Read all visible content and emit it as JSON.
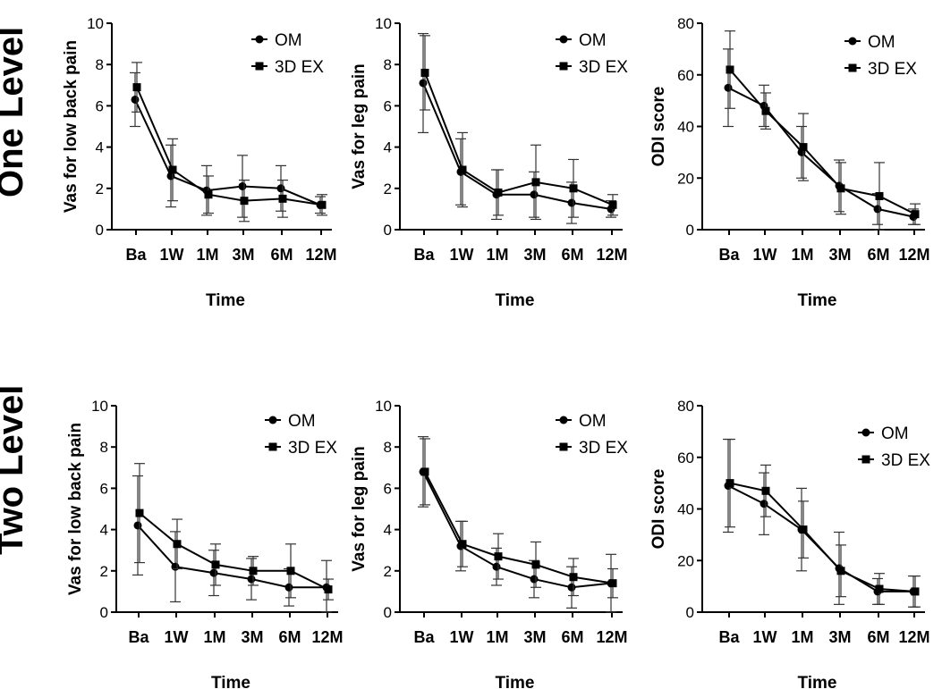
{
  "rows": [
    {
      "label": "One Level"
    },
    {
      "label": "Two Level"
    }
  ],
  "legend": {
    "series_1": "OM",
    "series_2": "3D EX"
  },
  "chart_data": [
    {
      "type": "line",
      "row": "One Level",
      "xlabel": "Time",
      "ylabel": "Vas for low back pain",
      "categories": [
        "Ba",
        "1W",
        "1M",
        "3M",
        "6M",
        "12M"
      ],
      "ylim": [
        0,
        10
      ],
      "yticks": [
        0,
        2,
        4,
        6,
        8,
        10
      ],
      "series": [
        {
          "name": "OM",
          "marker": "circle",
          "values": [
            6.3,
            2.6,
            1.9,
            2.1,
            2.0,
            1.2
          ],
          "err": [
            1.3,
            1.5,
            1.2,
            1.5,
            1.1,
            0.4
          ]
        },
        {
          "name": "3D EX",
          "marker": "square",
          "values": [
            6.9,
            2.9,
            1.7,
            1.4,
            1.5,
            1.2
          ],
          "err": [
            1.2,
            1.5,
            0.9,
            1.0,
            0.9,
            0.5
          ]
        }
      ]
    },
    {
      "type": "line",
      "row": "One Level",
      "xlabel": "Time",
      "ylabel": "Vas for leg pain",
      "categories": [
        "Ba",
        "1W",
        "1M",
        "3M",
        "6M",
        "12M"
      ],
      "ylim": [
        0,
        10
      ],
      "yticks": [
        0,
        2,
        4,
        6,
        8,
        10
      ],
      "series": [
        {
          "name": "OM",
          "marker": "circle",
          "values": [
            7.1,
            2.8,
            1.7,
            1.7,
            1.3,
            1.0
          ],
          "err": [
            2.4,
            1.6,
            1.2,
            1.1,
            1.0,
            0.4
          ]
        },
        {
          "name": "3D EX",
          "marker": "square",
          "values": [
            7.6,
            2.9,
            1.8,
            2.3,
            2.0,
            1.2
          ],
          "err": [
            1.8,
            1.8,
            1.1,
            1.8,
            1.4,
            0.5
          ]
        }
      ]
    },
    {
      "type": "line",
      "row": "One Level",
      "xlabel": "Time",
      "ylabel": "ODI score",
      "categories": [
        "Ba",
        "1W",
        "1M",
        "3M",
        "6M",
        "12M"
      ],
      "ylim": [
        0,
        80
      ],
      "yticks": [
        0,
        20,
        40,
        60,
        80
      ],
      "series": [
        {
          "name": "OM",
          "marker": "circle",
          "values": [
            55,
            48,
            30,
            17,
            8,
            5
          ],
          "err": [
            15,
            8,
            10,
            10,
            6,
            3
          ]
        },
        {
          "name": "3D EX",
          "marker": "square",
          "values": [
            62,
            46,
            32,
            16,
            13,
            6
          ],
          "err": [
            15,
            7,
            13,
            10,
            13,
            4
          ]
        }
      ]
    },
    {
      "type": "line",
      "row": "Two Level",
      "xlabel": "Time",
      "ylabel": "Vas for low back pain",
      "categories": [
        "Ba",
        "1W",
        "1M",
        "3M",
        "6M",
        "12M"
      ],
      "ylim": [
        0,
        10
      ],
      "yticks": [
        0,
        2,
        4,
        6,
        8,
        10
      ],
      "series": [
        {
          "name": "OM",
          "marker": "circle",
          "values": [
            4.2,
            2.2,
            1.9,
            1.6,
            1.2,
            1.2
          ],
          "err": [
            2.4,
            1.7,
            1.1,
            1.0,
            0.9,
            1.3
          ]
        },
        {
          "name": "3D EX",
          "marker": "square",
          "values": [
            4.8,
            3.3,
            2.3,
            2.0,
            2.0,
            1.1
          ],
          "err": [
            2.4,
            1.2,
            1.0,
            0.7,
            1.3,
            0.5
          ]
        }
      ]
    },
    {
      "type": "line",
      "row": "Two Level",
      "xlabel": "Time",
      "ylabel": "Vas for leg pain",
      "categories": [
        "Ba",
        "1W",
        "1M",
        "3M",
        "6M",
        "12M"
      ],
      "ylim": [
        0,
        10
      ],
      "yticks": [
        0,
        2,
        4,
        6,
        8,
        10
      ],
      "series": [
        {
          "name": "OM",
          "marker": "circle",
          "values": [
            6.8,
            3.2,
            2.2,
            1.6,
            1.2,
            1.4
          ],
          "err": [
            1.7,
            1.2,
            0.9,
            0.9,
            1.0,
            1.4
          ]
        },
        {
          "name": "3D EX",
          "marker": "square",
          "values": [
            6.8,
            3.3,
            2.7,
            2.3,
            1.7,
            1.4
          ],
          "err": [
            1.6,
            1.1,
            1.1,
            1.1,
            0.9,
            0.7
          ]
        }
      ]
    },
    {
      "type": "line",
      "row": "Two Level",
      "xlabel": "Time",
      "ylabel": "ODI score",
      "categories": [
        "Ba",
        "1W",
        "1M",
        "3M",
        "6M",
        "12M"
      ],
      "ylim": [
        0,
        80
      ],
      "yticks": [
        0,
        20,
        40,
        60,
        80
      ],
      "series": [
        {
          "name": "OM",
          "marker": "circle",
          "values": [
            49,
            42,
            32,
            17,
            8,
            8
          ],
          "err": [
            18,
            12,
            16,
            14,
            5,
            6
          ]
        },
        {
          "name": "3D EX",
          "marker": "square",
          "values": [
            50,
            47,
            32,
            16,
            9,
            8
          ],
          "err": [
            17,
            10,
            11,
            10,
            6,
            6
          ]
        }
      ]
    }
  ]
}
